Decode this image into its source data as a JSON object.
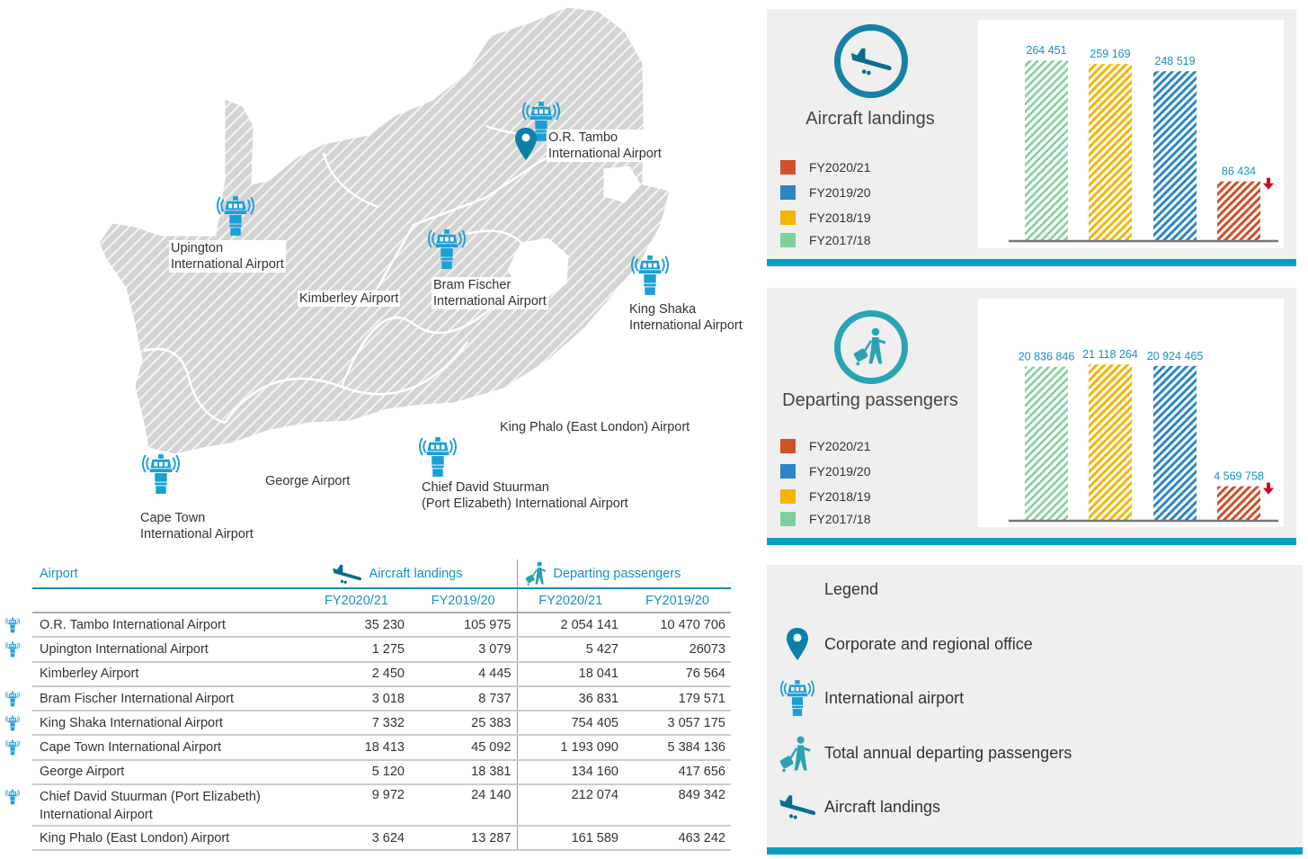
{
  "map": {
    "labels": {
      "or_tambo": [
        "O.R. Tambo",
        "International Airport"
      ],
      "upington": [
        "Upington",
        "International Airport"
      ],
      "kimberley": "Kimberley Airport",
      "bram_fischer": [
        "Bram Fischer",
        "International Airport"
      ],
      "king_shaka": [
        "King Shaka",
        "International Airport"
      ],
      "king_phalo": "King Phalo (East London) Airport",
      "george": "George Airport",
      "chief_david": [
        "Chief David Stuurman",
        "(Port Elizabeth) International Airport"
      ],
      "cape_town": [
        "Cape Town",
        "International Airport"
      ]
    }
  },
  "colors": {
    "fy2020_21": "#d0502a",
    "fy2019_20": "#2a86c5",
    "fy2018_19": "#f2b600",
    "fy2017_18": "#7fcf9d",
    "accent": "#00a0c6",
    "value_text": "#1a8fbf",
    "decline_arrow": "#d0021b"
  },
  "chart_data": [
    {
      "type": "bar",
      "title": "Aircraft landings",
      "categories": [
        "FY2017/18",
        "FY2018/19",
        "FY2019/20",
        "FY2020/21"
      ],
      "values": [
        264451,
        259169,
        248519,
        86434
      ],
      "labels": [
        "264 451",
        "259 169",
        "248 519",
        "86 434"
      ],
      "legend": [
        "FY2020/21",
        "FY2019/20",
        "FY2018/19",
        "FY2017/18"
      ],
      "ylim": [
        0,
        270000
      ],
      "xlabel": "",
      "ylabel": "",
      "grid": false
    },
    {
      "type": "bar",
      "title": "Departing passengers",
      "categories": [
        "FY2017/18",
        "FY2018/19",
        "FY2019/20",
        "FY2020/21"
      ],
      "values": [
        20836846,
        21118264,
        20924465,
        4569758
      ],
      "labels": [
        "20 836 846",
        "21 118 264",
        "20 924  465",
        "4 569 758"
      ],
      "legend": [
        "FY2020/21",
        "FY2019/20",
        "FY2018/19",
        "FY2017/18"
      ],
      "ylim": [
        0,
        22000000
      ],
      "xlabel": "",
      "ylabel": "",
      "grid": false
    }
  ],
  "legend": {
    "title": "Legend",
    "items": [
      "Corporate and regional office",
      "International airport",
      "Total annual departing passengers",
      "Aircraft landings"
    ]
  },
  "table": {
    "headers": {
      "airport": "Airport",
      "landings": "Aircraft landings",
      "passengers": "Departing passengers"
    },
    "subheaders": [
      "FY2020/21",
      "FY2019/20",
      "FY2020/21",
      "FY2019/20"
    ],
    "rows": [
      {
        "name": "O.R. Tambo International Airport",
        "intl": true,
        "values": [
          "35 230",
          "105 975",
          "2 054 141",
          "10 470 706"
        ]
      },
      {
        "name": "Upington International Airport",
        "intl": true,
        "values": [
          "1 275",
          "3 079",
          "5 427",
          "26073"
        ]
      },
      {
        "name": "Kimberley Airport",
        "intl": false,
        "values": [
          "2 450",
          "4 445",
          "18 041",
          "76 564"
        ]
      },
      {
        "name": "Bram Fischer International Airport",
        "intl": true,
        "values": [
          "3 018",
          "8 737",
          "36 831",
          "179 571"
        ]
      },
      {
        "name": "King Shaka International Airport",
        "intl": true,
        "values": [
          "7 332",
          "25 383",
          "754 405",
          "3 057 175"
        ]
      },
      {
        "name": "Cape Town International Airport",
        "intl": true,
        "values": [
          "18 413",
          "45 092",
          "1 193 090",
          "5 384 136"
        ]
      },
      {
        "name": "George Airport",
        "intl": false,
        "values": [
          "5 120",
          "18 381",
          "134 160",
          "417 656"
        ]
      },
      {
        "name": "Chief David Stuurman (Port Elizabeth)",
        "name2": "International Airport",
        "intl": true,
        "values": [
          "9 972",
          "24 140",
          "212 074",
          "849 342"
        ]
      },
      {
        "name": "King Phalo (East London) Airport",
        "intl": false,
        "values": [
          "3 624",
          "13 287",
          "161 589",
          "463 242"
        ]
      }
    ]
  }
}
